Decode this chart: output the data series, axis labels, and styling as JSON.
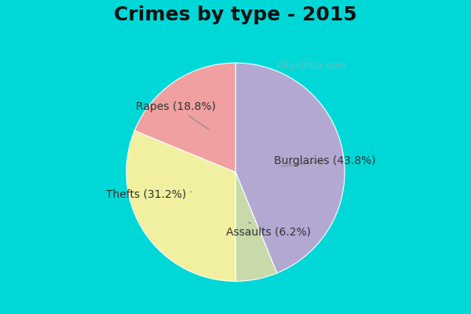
{
  "title": "Crimes by type - 2015",
  "slices": [
    {
      "label": "Burglaries",
      "pct": 43.8,
      "color": "#b3a8d1"
    },
    {
      "label": "Assaults",
      "pct": 6.2,
      "color": "#c8d9aa"
    },
    {
      "label": "Thefts",
      "pct": 31.2,
      "color": "#f0f0a0"
    },
    {
      "label": "Rapes",
      "pct": 18.8,
      "color": "#f0a0a0"
    }
  ],
  "bg_color_outer": "#00d8d8",
  "bg_color_inner": "#d8f0e8",
  "title_fontsize": 18,
  "label_fontsize": 10,
  "watermark": "City-Data.com"
}
